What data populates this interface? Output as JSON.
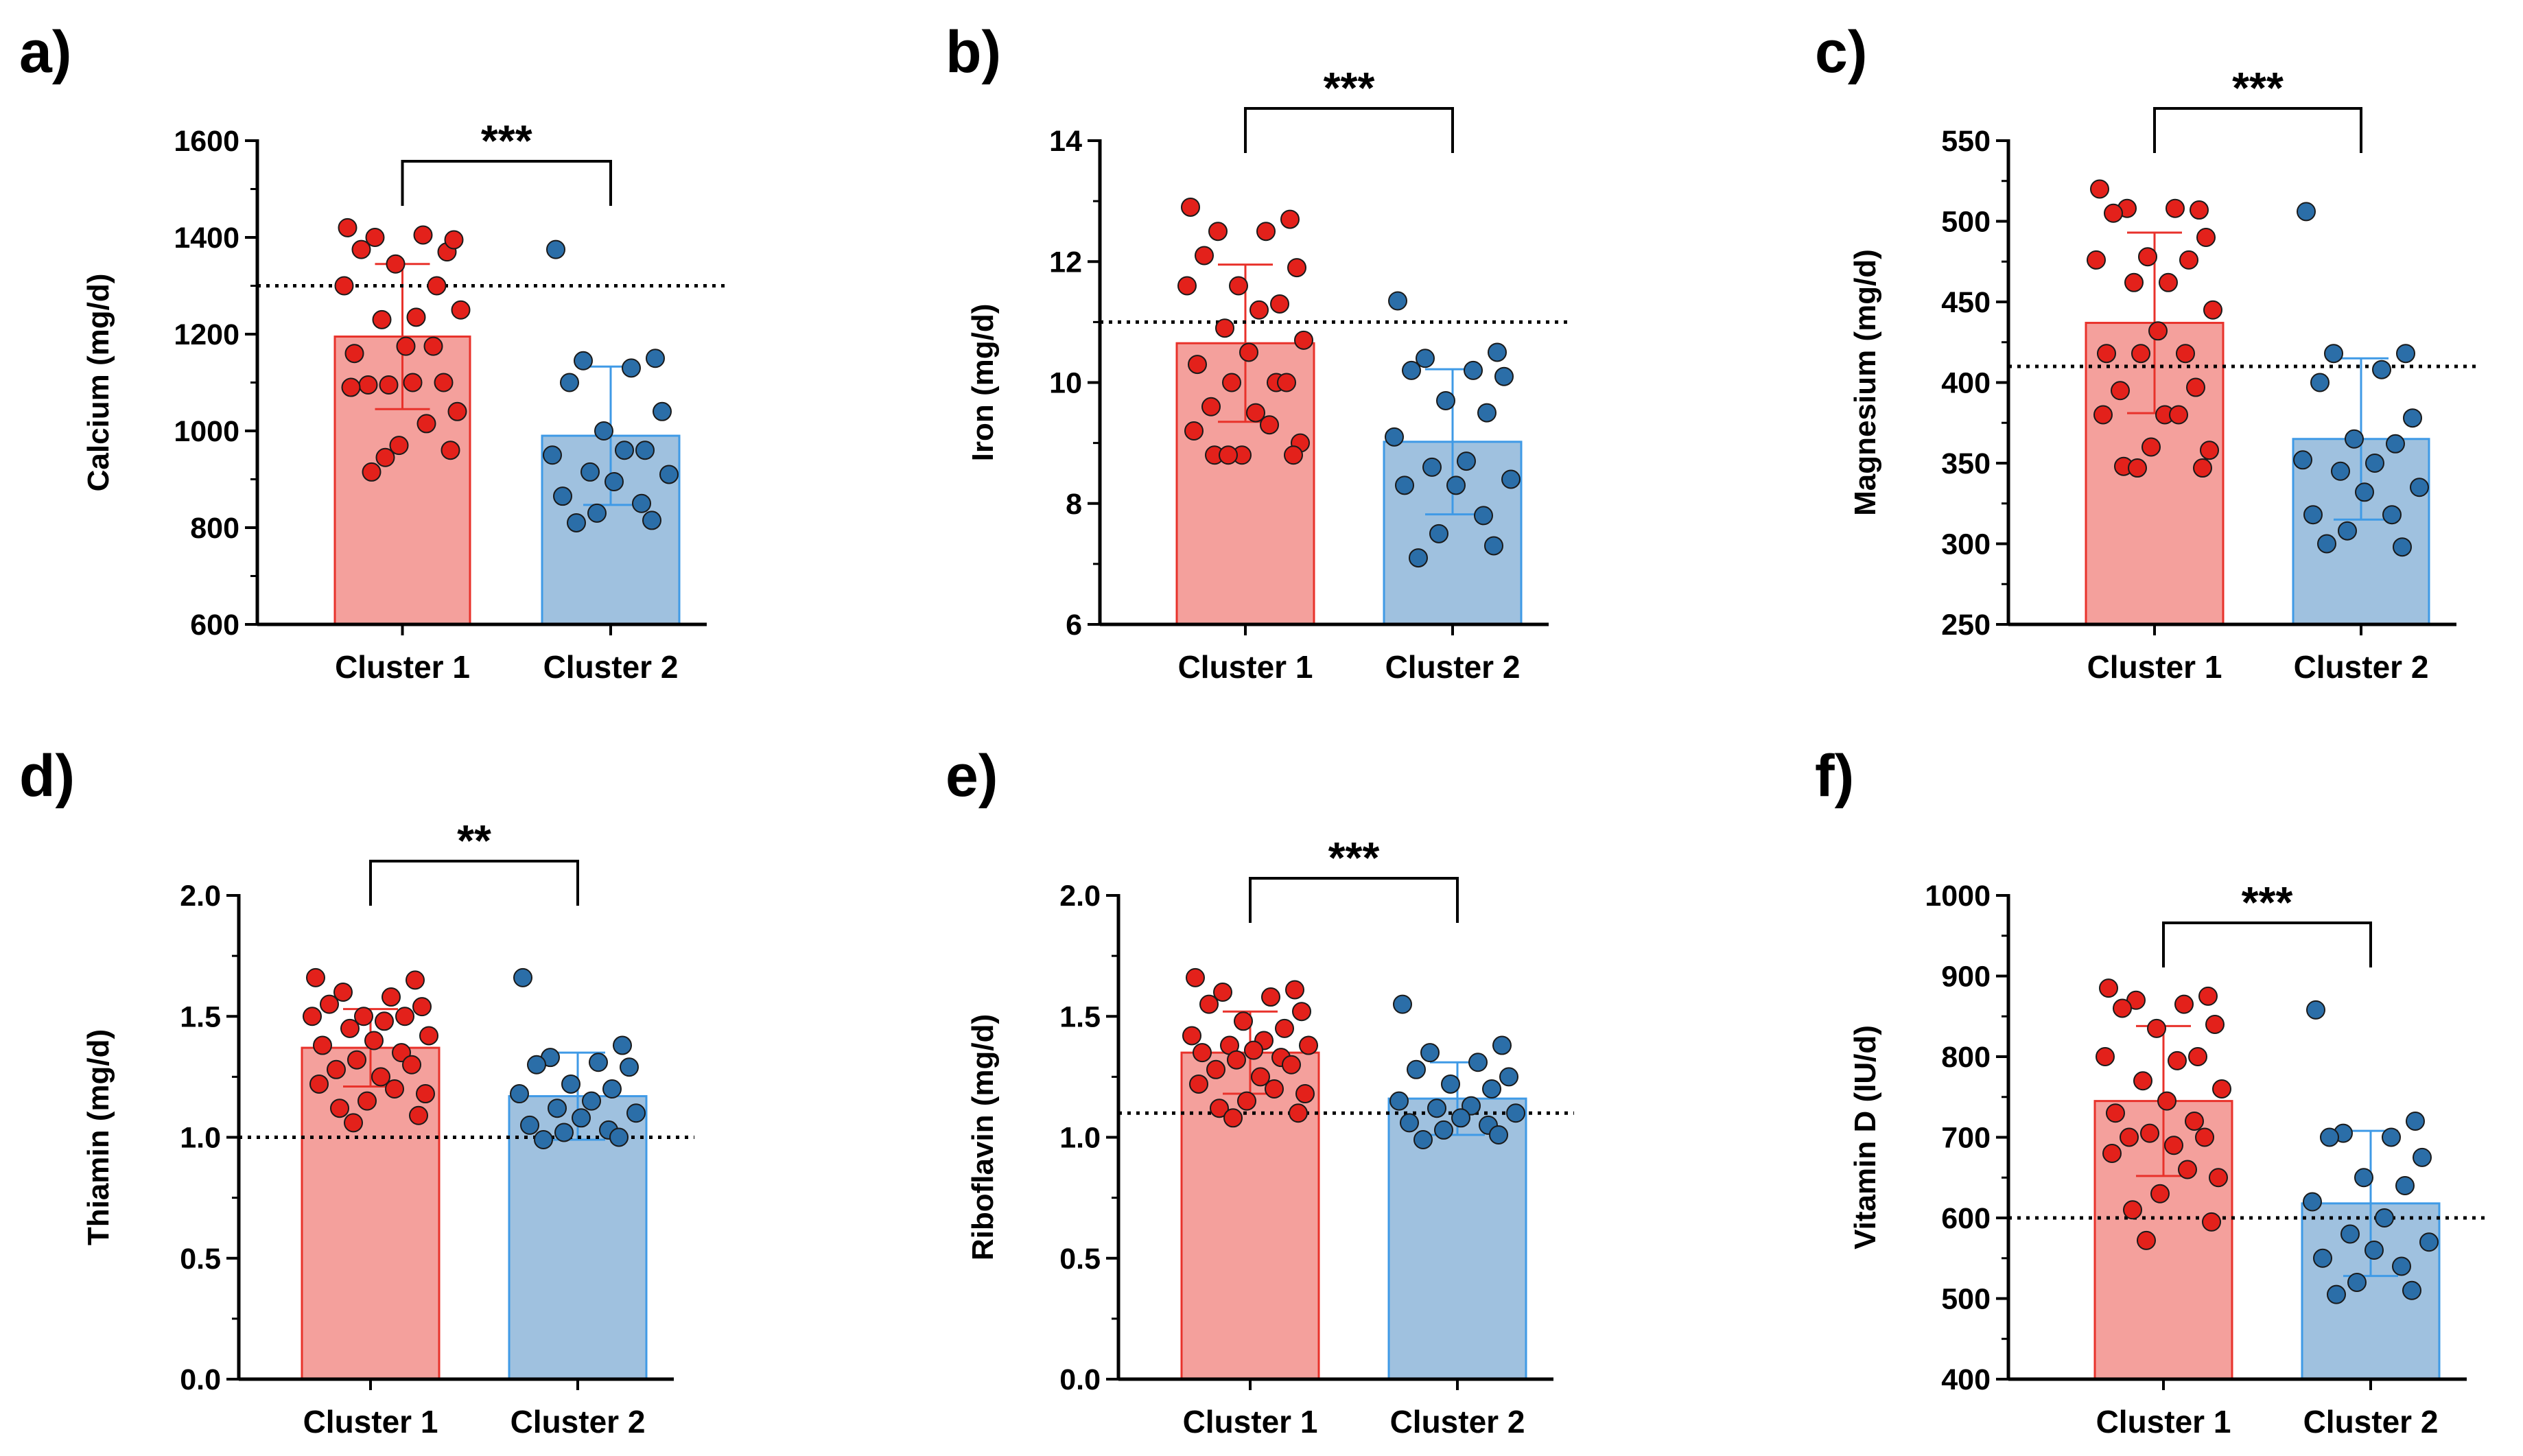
{
  "colors": {
    "cluster1_fill": "#f4a09c",
    "cluster1_edge": "#e8322b",
    "cluster1_dot": "#e3211b",
    "cluster2_fill": "#9fc1df",
    "cluster2_edge": "#3f9ae6",
    "cluster2_dot": "#2b6ea8",
    "dot_outline": "#1a1a1a"
  },
  "chart_data": [
    {
      "type": "bar",
      "panel": "a)",
      "ylabel": "Calcium (mg/d)",
      "categories": [
        "Cluster 1",
        "Cluster 2"
      ],
      "ylim": [
        600,
        1600
      ],
      "ticks": [
        600,
        800,
        1000,
        1200,
        1400,
        1600
      ],
      "tick_labels": [
        "600",
        "800",
        "1000",
        "1200",
        "1400",
        "1600"
      ],
      "means": [
        1195,
        990
      ],
      "sd": [
        150,
        143
      ],
      "reference_line": 1300,
      "significance": "***",
      "points": [
        [
          1420,
          1370,
          1400,
          1405,
          1375,
          1395,
          1345,
          1300,
          1300,
          1235,
          1230,
          1250,
          1175,
          1160,
          1175,
          1095,
          1100,
          1095,
          1100,
          1090,
          1015,
          1040,
          970,
          915,
          960,
          945
        ],
        [
          1375,
          1150,
          1145,
          1130,
          1100,
          1040,
          1000,
          960,
          950,
          960,
          915,
          910,
          895,
          865,
          850,
          830,
          815,
          810
        ]
      ]
    },
    {
      "type": "bar",
      "panel": "b)",
      "ylabel": "Iron (mg/d)",
      "categories": [
        "Cluster 1",
        "Cluster 2"
      ],
      "ylim": [
        6,
        14
      ],
      "ticks": [
        6,
        8,
        10,
        12,
        14
      ],
      "tick_labels": [
        "6",
        "8",
        "10",
        "12",
        "14"
      ],
      "means": [
        10.65,
        9.02
      ],
      "sd": [
        1.3,
        1.2
      ],
      "reference_line": 11,
      "significance": "***",
      "points": [
        [
          12.9,
          12.7,
          12.5,
          12.5,
          12.1,
          11.9,
          11.6,
          11.3,
          11.6,
          11.2,
          10.9,
          10.7,
          10.5,
          10.3,
          10.0,
          10.0,
          10.0,
          9.6,
          9.5,
          9.2,
          9.3,
          9.0,
          8.8,
          8.8,
          8.8,
          8.8
        ],
        [
          11.35,
          10.5,
          10.4,
          10.2,
          10.2,
          10.1,
          9.7,
          9.5,
          9.1,
          8.7,
          8.6,
          8.4,
          8.3,
          8.3,
          7.8,
          7.5,
          7.3,
          7.1
        ]
      ]
    },
    {
      "type": "bar",
      "panel": "c)",
      "ylabel": "Magnesium (mg/d)",
      "categories": [
        "Cluster 1",
        "Cluster 2"
      ],
      "ylim": [
        250,
        550
      ],
      "ticks": [
        250,
        300,
        350,
        400,
        450,
        500,
        550
      ],
      "tick_labels": [
        "250",
        "300",
        "350",
        "400",
        "450",
        "500",
        "550"
      ],
      "means": [
        437,
        365
      ],
      "sd": [
        56,
        50
      ],
      "reference_line": 410,
      "significance": "***",
      "points": [
        [
          520,
          507,
          508,
          508,
          505,
          490,
          478,
          476,
          476,
          462,
          462,
          445,
          432,
          418,
          418,
          418,
          397,
          395,
          380,
          380,
          380,
          358,
          360,
          348,
          347,
          347
        ],
        [
          506,
          418,
          418,
          408,
          400,
          378,
          365,
          362,
          352,
          350,
          345,
          335,
          332,
          318,
          318,
          308,
          298,
          300
        ]
      ]
    },
    {
      "type": "bar",
      "panel": "d)",
      "ylabel": "Thiamin (mg/d)",
      "categories": [
        "Cluster 1",
        "Cluster 2"
      ],
      "ylim": [
        0,
        2
      ],
      "ticks": [
        0.0,
        0.5,
        1.0,
        1.5,
        2.0
      ],
      "tick_labels": [
        "0.0",
        "0.5",
        "1.0",
        "1.5",
        "2.0"
      ],
      "means": [
        1.37,
        1.17
      ],
      "sd": [
        0.16,
        0.18
      ],
      "reference_line": 1.0,
      "significance": "**",
      "points": [
        [
          1.66,
          1.65,
          1.6,
          1.58,
          1.55,
          1.54,
          1.5,
          1.5,
          1.5,
          1.48,
          1.45,
          1.42,
          1.4,
          1.38,
          1.35,
          1.32,
          1.3,
          1.28,
          1.25,
          1.22,
          1.2,
          1.18,
          1.15,
          1.12,
          1.09,
          1.06
        ],
        [
          1.66,
          1.38,
          1.33,
          1.31,
          1.3,
          1.29,
          1.22,
          1.2,
          1.18,
          1.15,
          1.12,
          1.1,
          1.08,
          1.05,
          1.03,
          1.02,
          1.0,
          0.99
        ]
      ]
    },
    {
      "type": "bar",
      "panel": "e)",
      "ylabel": "Riboflavin (mg/d)",
      "categories": [
        "Cluster 1",
        "Cluster 2"
      ],
      "ylim": [
        0,
        2
      ],
      "ticks": [
        0.0,
        0.5,
        1.0,
        1.5,
        2.0
      ],
      "tick_labels": [
        "0.0",
        "0.5",
        "1.0",
        "1.5",
        "2.0"
      ],
      "means": [
        1.35,
        1.16
      ],
      "sd": [
        0.17,
        0.15
      ],
      "reference_line": 1.1,
      "significance": "***",
      "points": [
        [
          1.66,
          1.61,
          1.6,
          1.58,
          1.55,
          1.52,
          1.48,
          1.45,
          1.42,
          1.4,
          1.38,
          1.38,
          1.36,
          1.35,
          1.33,
          1.32,
          1.3,
          1.28,
          1.25,
          1.22,
          1.2,
          1.18,
          1.15,
          1.12,
          1.1,
          1.08
        ],
        [
          1.55,
          1.38,
          1.35,
          1.31,
          1.28,
          1.25,
          1.22,
          1.2,
          1.15,
          1.13,
          1.12,
          1.1,
          1.08,
          1.06,
          1.05,
          1.03,
          1.01,
          0.99
        ]
      ]
    },
    {
      "type": "bar",
      "panel": "f)",
      "ylabel": "Vitamin D (IU/d)",
      "categories": [
        "Cluster 1",
        "Cluster 2"
      ],
      "ylim": [
        400,
        1000
      ],
      "ticks": [
        400,
        500,
        600,
        700,
        800,
        900,
        1000
      ],
      "tick_labels": [
        "400",
        "500",
        "600",
        "700",
        "800",
        "900",
        "1000"
      ],
      "means": [
        745,
        618
      ],
      "sd": [
        93,
        90
      ],
      "reference_line": 600,
      "significance": "***",
      "points": [
        [
          885,
          875,
          870,
          865,
          860,
          840,
          835,
          800,
          800,
          795,
          770,
          760,
          745,
          730,
          720,
          705,
          700,
          700,
          690,
          680,
          660,
          650,
          630,
          610,
          595,
          572
        ],
        [
          858,
          720,
          705,
          700,
          700,
          675,
          650,
          640,
          620,
          600,
          580,
          570,
          560,
          550,
          540,
          520,
          510,
          505
        ]
      ]
    }
  ]
}
